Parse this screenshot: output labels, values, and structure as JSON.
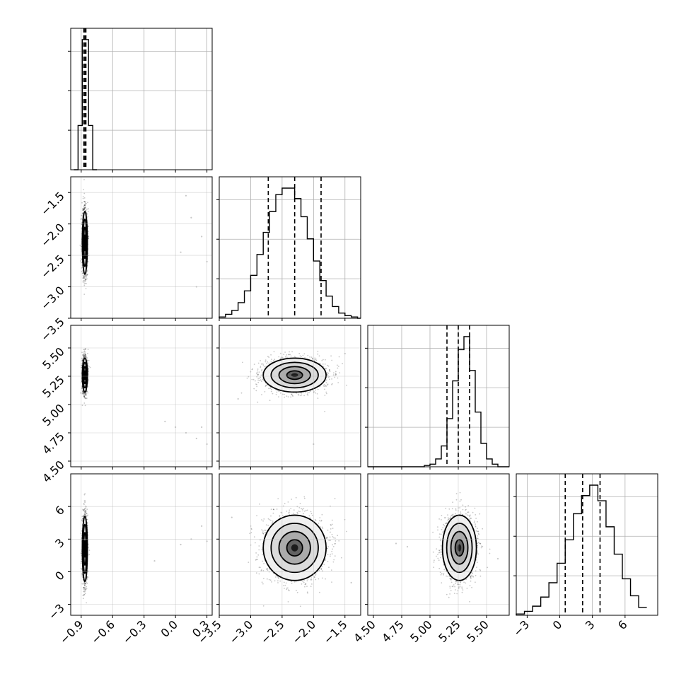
{
  "chart_data": {
    "type": "corner",
    "title": "",
    "grid": true,
    "dimensions": [
      {
        "index": 0,
        "range": [
          -1.0,
          0.35
        ],
        "ticks": [
          {
            "value": -0.9,
            "label": "−0.9"
          },
          {
            "value": -0.6,
            "label": "−0.6"
          },
          {
            "value": -0.3,
            "label": "−0.3"
          },
          {
            "value": 0.0,
            "label": "0.0"
          },
          {
            "value": 0.3,
            "label": "0.3"
          }
        ],
        "histogram": {
          "bin_edges": [
            -0.97,
            -0.95,
            -0.93,
            -0.91,
            -0.89,
            -0.87,
            -0.85,
            -0.83,
            -0.81,
            -0.79,
            -0.77,
            -0.75
          ],
          "counts": [
            0,
            0,
            0.34,
            0.34,
            1.0,
            1.0,
            1.0,
            0.34,
            0.34,
            0,
            0
          ],
          "quantiles": [
            -0.875,
            -0.865,
            -0.855
          ]
        }
      },
      {
        "index": 1,
        "range": [
          -3.5,
          -1.25
        ],
        "ticks": [
          {
            "value": -3.5,
            "label": "−3.5"
          },
          {
            "value": -3.0,
            "label": "−3.0"
          },
          {
            "value": -2.5,
            "label": "−2.5"
          },
          {
            "value": -2.0,
            "label": "−2.0"
          },
          {
            "value": -1.5,
            "label": "−1.5"
          }
        ],
        "histogram": {
          "bin_edges": [
            -3.5,
            -3.4,
            -3.3,
            -3.2,
            -3.1,
            -3.0,
            -2.9,
            -2.8,
            -2.7,
            -2.6,
            -2.5,
            -2.4,
            -2.3,
            -2.2,
            -2.1,
            -2.0,
            -1.9,
            -1.8,
            -1.7,
            -1.6,
            -1.5,
            -1.4,
            -1.3,
            -1.25
          ],
          "counts": [
            0.01,
            0.03,
            0.06,
            0.12,
            0.21,
            0.33,
            0.49,
            0.66,
            0.82,
            0.95,
            1.0,
            1.0,
            0.92,
            0.78,
            0.61,
            0.44,
            0.29,
            0.17,
            0.09,
            0.04,
            0.02,
            0.01,
            0.0
          ],
          "quantiles": [
            -2.72,
            -2.3,
            -1.88
          ]
        }
      },
      {
        "index": 2,
        "range": [
          4.45,
          5.7
        ],
        "ticks": [
          {
            "value": 4.5,
            "label": "4.50"
          },
          {
            "value": 4.75,
            "label": "4.75"
          },
          {
            "value": 5.0,
            "label": "5.00"
          },
          {
            "value": 5.25,
            "label": "5.25"
          },
          {
            "value": 5.5,
            "label": "5.50"
          }
        ],
        "histogram": {
          "bin_edges": [
            4.45,
            4.5,
            4.55,
            4.6,
            4.65,
            4.7,
            4.75,
            4.8,
            4.85,
            4.9,
            4.95,
            5.0,
            5.05,
            5.1,
            5.15,
            5.2,
            5.25,
            5.3,
            5.35,
            5.4,
            5.45,
            5.5,
            5.55,
            5.6,
            5.65,
            5.7
          ],
          "counts": [
            0,
            0,
            0,
            0,
            0,
            0,
            0,
            0,
            0,
            0,
            0.01,
            0.02,
            0.06,
            0.16,
            0.37,
            0.66,
            0.9,
            1.0,
            0.74,
            0.42,
            0.18,
            0.06,
            0.02,
            0.0,
            0.0
          ],
          "quantiles": [
            5.15,
            5.25,
            5.35
          ]
        }
      },
      {
        "index": 3,
        "range": [
          -4.0,
          9.0
        ],
        "ticks": [
          {
            "value": -3,
            "label": "−3"
          },
          {
            "value": 0,
            "label": "0"
          },
          {
            "value": 3,
            "label": "3"
          },
          {
            "value": 6,
            "label": "6"
          }
        ],
        "histogram": {
          "bin_edges": [
            -4.0,
            -3.25,
            -2.5,
            -1.75,
            -1.0,
            -0.25,
            0.5,
            1.25,
            2.0,
            2.75,
            3.5,
            4.25,
            5.0,
            5.75,
            6.5,
            7.25,
            8.0
          ],
          "counts": [
            0.01,
            0.03,
            0.07,
            0.14,
            0.25,
            0.4,
            0.58,
            0.78,
            0.92,
            1.0,
            0.88,
            0.68,
            0.47,
            0.28,
            0.15,
            0.06
          ],
          "quantiles": [
            0.5,
            2.1,
            3.7
          ]
        }
      }
    ],
    "pairs": [
      {
        "x": 0,
        "y": 1,
        "mean": [
          -0.865,
          -2.3
        ],
        "std": [
          0.012,
          0.25
        ],
        "outliers": [
          [
            0.1,
            -1.55
          ],
          [
            0.15,
            -1.9
          ],
          [
            0.25,
            -2.2
          ],
          [
            0.3,
            -2.6
          ],
          [
            0.05,
            -2.45
          ],
          [
            0.2,
            -3.0
          ]
        ]
      },
      {
        "x": 0,
        "y": 2,
        "mean": [
          -0.865,
          5.26
        ],
        "std": [
          0.012,
          0.075
        ],
        "outliers": [
          [
            -0.1,
            4.85
          ],
          [
            0.0,
            4.8
          ],
          [
            0.1,
            4.75
          ],
          [
            0.2,
            4.7
          ],
          [
            0.3,
            4.65
          ],
          [
            0.25,
            4.8
          ]
        ]
      },
      {
        "x": 0,
        "y": 3,
        "mean": [
          -0.865,
          2.1
        ],
        "std": [
          0.012,
          1.5
        ],
        "outliers": [
          [
            0.05,
            2.5
          ],
          [
            0.15,
            3.0
          ],
          [
            0.25,
            4.2
          ],
          [
            -0.2,
            1.0
          ],
          [
            0.3,
            2.8
          ]
        ]
      },
      {
        "x": 1,
        "y": 2,
        "mean": [
          -2.3,
          5.26
        ],
        "std": [
          0.25,
          0.075
        ],
        "outliers": [
          [
            -2.0,
            4.65
          ],
          [
            -3.2,
            5.05
          ],
          [
            -1.5,
            5.45
          ]
        ]
      },
      {
        "x": 1,
        "y": 3,
        "mean": [
          -2.3,
          2.2
        ],
        "std": [
          0.25,
          1.5
        ],
        "outliers": [
          [
            -3.3,
            5.0
          ],
          [
            -1.4,
            -1.0
          ]
        ]
      },
      {
        "x": 2,
        "y": 3,
        "mean": [
          5.26,
          2.2
        ],
        "std": [
          0.075,
          1.5
        ],
        "outliers": [
          [
            4.8,
            2.3
          ],
          [
            4.7,
            2.6
          ],
          [
            5.6,
            1.2
          ]
        ]
      }
    ]
  }
}
